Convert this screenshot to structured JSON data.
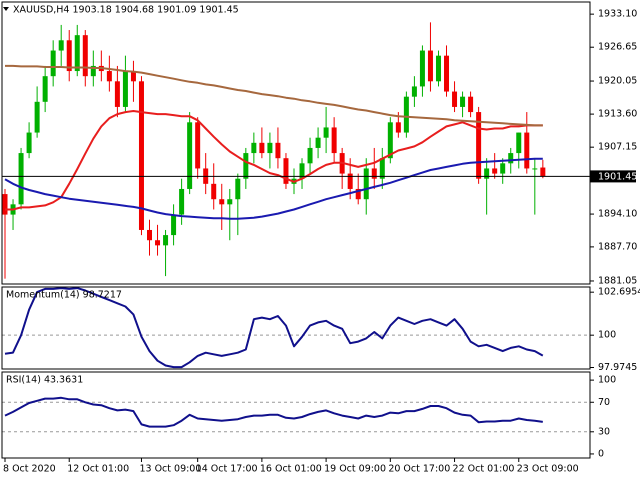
{
  "chart_data": [
    {
      "type": "candlestick",
      "title": "XAUUSD,H4  1903.18 1904.68 1901.09 1901.45",
      "open": [
        1898,
        1894,
        1896,
        1906,
        1910,
        1916,
        1921,
        1926,
        1928,
        1922,
        1929,
        1921,
        1923,
        1922,
        1920,
        1915,
        1922,
        1920,
        1891,
        1889,
        1888,
        1890,
        1894,
        1899,
        1912,
        1903,
        1900,
        1897,
        1896,
        1897,
        1901,
        1906,
        1908,
        1906,
        1908,
        1905,
        1900,
        1901,
        1904,
        1907,
        1909,
        1911,
        1906,
        1902,
        1899,
        1897,
        1903,
        1901,
        1905,
        1912,
        1910,
        1917,
        1919,
        1926,
        1920,
        1925,
        1918,
        1915,
        1917,
        1914,
        1901,
        1903,
        1902,
        1904,
        1906,
        1910,
        1903,
        1903.18
      ],
      "high": [
        1899,
        1897,
        1907,
        1912,
        1919,
        1923,
        1928,
        1931,
        1930,
        1931,
        1930,
        1926,
        1926,
        1925,
        1923,
        1925,
        1924,
        1921,
        1893,
        1892,
        1891,
        1896,
        1901,
        1914,
        1913,
        1906,
        1904,
        1900,
        1899,
        1902,
        1907,
        1910,
        1911,
        1910,
        1911,
        1906,
        1903,
        1905,
        1909,
        1911,
        1915,
        1913,
        1907,
        1905,
        1902,
        1905,
        1907,
        1907,
        1913,
        1914,
        1918,
        1921,
        1927,
        1931.5,
        1926,
        1927,
        1920,
        1918,
        1918,
        1915,
        1905,
        1906,
        1905,
        1907,
        1910,
        1914,
        1905,
        1904.68
      ],
      "low": [
        1881.5,
        1891,
        1895,
        1905,
        1909,
        1914,
        1919,
        1923,
        1920,
        1921,
        1919,
        1919,
        1920,
        1918,
        1913,
        1914,
        1916,
        1890,
        1886,
        1886,
        1882,
        1888,
        1892,
        1898,
        1901,
        1898,
        1895,
        1891,
        1889,
        1890,
        1899,
        1904,
        1905,
        1903,
        1903,
        1899,
        1898,
        1899,
        1902,
        1905,
        1906,
        1904,
        1899,
        1897,
        1896,
        1894,
        1899,
        1899,
        1904,
        1909,
        1909,
        1915,
        1917,
        1918,
        1919,
        1917,
        1914,
        1913,
        1913,
        1900,
        1894,
        1901,
        1900,
        1902,
        1903,
        1902,
        1894,
        1901.09
      ],
      "close": [
        1894,
        1896,
        1906,
        1910,
        1916,
        1921,
        1926,
        1928,
        1922,
        1929,
        1921,
        1923,
        1922,
        1920,
        1915,
        1922,
        1920,
        1891,
        1889,
        1888,
        1890,
        1894,
        1899,
        1912,
        1903,
        1900,
        1897,
        1896,
        1897,
        1901,
        1906,
        1908,
        1906,
        1908,
        1905,
        1900,
        1901,
        1904,
        1907,
        1909,
        1911,
        1906,
        1902,
        1899,
        1897,
        1903,
        1901,
        1905,
        1912,
        1910,
        1917,
        1919,
        1926,
        1920,
        1925,
        1918,
        1915,
        1917,
        1914,
        1901,
        1903,
        1902,
        1904,
        1906,
        1910,
        1903,
        1903,
        1901.45
      ],
      "up_color": "#00b000",
      "down_color": "#f00000",
      "series": [
        {
          "color": "#e81e1e",
          "values": [
            1895.0,
            1895.0,
            1895.4,
            1895.4,
            1895.6,
            1895.8,
            1896.4,
            1897.4,
            1900.0,
            1902.9,
            1905.9,
            1908.8,
            1911.2,
            1912.8,
            1913.6,
            1914.0,
            1914.2,
            1914.0,
            1913.8,
            1913.6,
            1913.6,
            1913.4,
            1913.2,
            1913.2,
            1912.4,
            1910.8,
            1909.2,
            1907.7,
            1906.3,
            1905.3,
            1904.3,
            1903.7,
            1902.9,
            1902.1,
            1901.7,
            1901.0,
            1900.4,
            1901.0,
            1901.9,
            1902.9,
            1903.7,
            1904.1,
            1904.1,
            1903.7,
            1903.3,
            1903.7,
            1904.1,
            1904.9,
            1905.7,
            1906.5,
            1906.9,
            1907.3,
            1908.1,
            1909.2,
            1910.2,
            1911.2,
            1911.6,
            1912.0,
            1911.4,
            1910.8,
            1910.6,
            1910.8,
            1910.8,
            1911.2,
            1911.2,
            1911.4,
            1911.4,
            1911.4
          ]
        },
        {
          "color": "#1a1ab0",
          "values": [
            1900.9,
            1900.0,
            1899.3,
            1898.8,
            1898.4,
            1898.0,
            1897.7,
            1897.4,
            1897.1,
            1896.9,
            1896.7,
            1896.5,
            1896.3,
            1896.1,
            1895.9,
            1895.7,
            1895.5,
            1895.2,
            1894.8,
            1894.4,
            1894.1,
            1893.9,
            1893.7,
            1893.6,
            1893.5,
            1893.4,
            1893.3,
            1893.3,
            1893.2,
            1893.2,
            1893.3,
            1893.4,
            1893.6,
            1893.9,
            1894.2,
            1894.6,
            1895.0,
            1895.5,
            1896.0,
            1896.5,
            1897.0,
            1897.4,
            1897.8,
            1898.2,
            1898.6,
            1899.0,
            1899.4,
            1899.8,
            1900.2,
            1900.7,
            1901.2,
            1901.7,
            1902.2,
            1902.7,
            1903.0,
            1903.3,
            1903.6,
            1903.9,
            1904.1,
            1904.2,
            1904.3,
            1904.4,
            1904.5,
            1904.6,
            1904.7,
            1904.8,
            1904.9,
            1904.9
          ]
        },
        {
          "color": "#a6683e",
          "values": [
            1923.0,
            1923.0,
            1922.9,
            1922.9,
            1922.9,
            1922.8,
            1922.8,
            1922.8,
            1922.7,
            1922.7,
            1922.7,
            1922.6,
            1922.6,
            1922.4,
            1922.2,
            1922.0,
            1921.9,
            1921.7,
            1921.4,
            1921.1,
            1920.8,
            1920.5,
            1920.2,
            1919.9,
            1919.7,
            1919.4,
            1919.2,
            1918.9,
            1918.6,
            1918.3,
            1918.1,
            1917.8,
            1917.5,
            1917.3,
            1917.1,
            1916.8,
            1916.6,
            1916.3,
            1916.1,
            1915.8,
            1915.6,
            1915.4,
            1915.1,
            1914.8,
            1914.5,
            1914.3,
            1914.0,
            1913.7,
            1913.4,
            1913.2,
            1913.1,
            1913.0,
            1912.9,
            1912.8,
            1912.7,
            1912.6,
            1912.4,
            1912.3,
            1912.2,
            1912.1,
            1912.0,
            1911.9,
            1911.8,
            1911.7,
            1911.6,
            1911.5,
            1911.4,
            1911.4
          ]
        }
      ],
      "ylim": [
        1880.46,
        1935.47
      ],
      "yticks": [
        {
          "value": 1933.1,
          "label": "1933.10"
        },
        1926.65,
        1920.05,
        {
          "value": 1913.6,
          "label": "1913.60"
        },
        1907.15,
        {
          "value": 1894.1,
          "label": "1894.10"
        },
        {
          "value": 1887.7,
          "label": "1887.70"
        },
        1881.05
      ],
      "last_price_line": true
    },
    {
      "type": "line",
      "title": "Momentum(14) 98.7217",
      "color": "#10108c",
      "values": [
        98.84,
        98.91,
        100.0,
        101.6,
        102.7,
        102.9,
        102.9,
        102.95,
        102.9,
        102.95,
        102.8,
        102.6,
        102.4,
        102.2,
        102.0,
        101.8,
        101.3,
        99.9,
        99.0,
        98.4,
        98.1,
        98.0,
        98.0,
        98.3,
        98.7,
        98.9,
        98.8,
        98.7,
        98.8,
        98.9,
        99.1,
        101.0,
        101.1,
        101.0,
        101.2,
        100.6,
        99.3,
        99.9,
        100.6,
        100.8,
        100.9,
        100.6,
        100.4,
        99.5,
        99.6,
        99.8,
        100.2,
        99.8,
        100.6,
        101.1,
        100.9,
        100.7,
        100.9,
        101.0,
        100.8,
        100.6,
        101.0,
        100.4,
        99.6,
        99.3,
        99.4,
        99.2,
        99.0,
        99.2,
        99.3,
        99.1,
        99.0,
        98.7217
      ],
      "ylim": [
        97.88,
        103.02
      ],
      "yticks": [
        97.9745,
        100,
        102.6954
      ],
      "levels": [
        100
      ]
    },
    {
      "type": "line",
      "title": "RSI(14) 43.3631",
      "color": "#10108c",
      "values": [
        52,
        57,
        63,
        69,
        72,
        75,
        75,
        76,
        74,
        74,
        70,
        67,
        66,
        62,
        59,
        60,
        58,
        40,
        37,
        37,
        37,
        39,
        45,
        53,
        48,
        47,
        46,
        45,
        46,
        47,
        50,
        52,
        52,
        53,
        53,
        49,
        48,
        50,
        54,
        57,
        59,
        55,
        52,
        50,
        48,
        52,
        50,
        52,
        56,
        55,
        58,
        58,
        61,
        65,
        65,
        62,
        56,
        53,
        52,
        43,
        44,
        44,
        45,
        45,
        48,
        46,
        45,
        43.3631
      ],
      "ylim": [
        -5.5,
        111
      ],
      "yticks": [
        100,
        70,
        30,
        0
      ],
      "levels": [
        70,
        30
      ],
      "xlim": [
        -0.375,
        72.875
      ],
      "xticks": [
        {
          "value": 0,
          "label": "8 Oct 2020"
        },
        {
          "value": 8,
          "label": "12 Oct 01:00"
        },
        {
          "value": 17,
          "label": "13 Oct 09:00"
        },
        {
          "value": 24,
          "label": "14 Oct 17:00"
        },
        {
          "value": 32,
          "label": "16 Oct 01:00"
        },
        {
          "value": 40,
          "label": "19 Oct 09:00"
        },
        {
          "value": 48,
          "label": "20 Oct 17:00"
        },
        {
          "value": 56,
          "label": "22 Oct 01:00"
        },
        {
          "value": 64,
          "label": "23 Oct 09:00"
        }
      ]
    }
  ]
}
